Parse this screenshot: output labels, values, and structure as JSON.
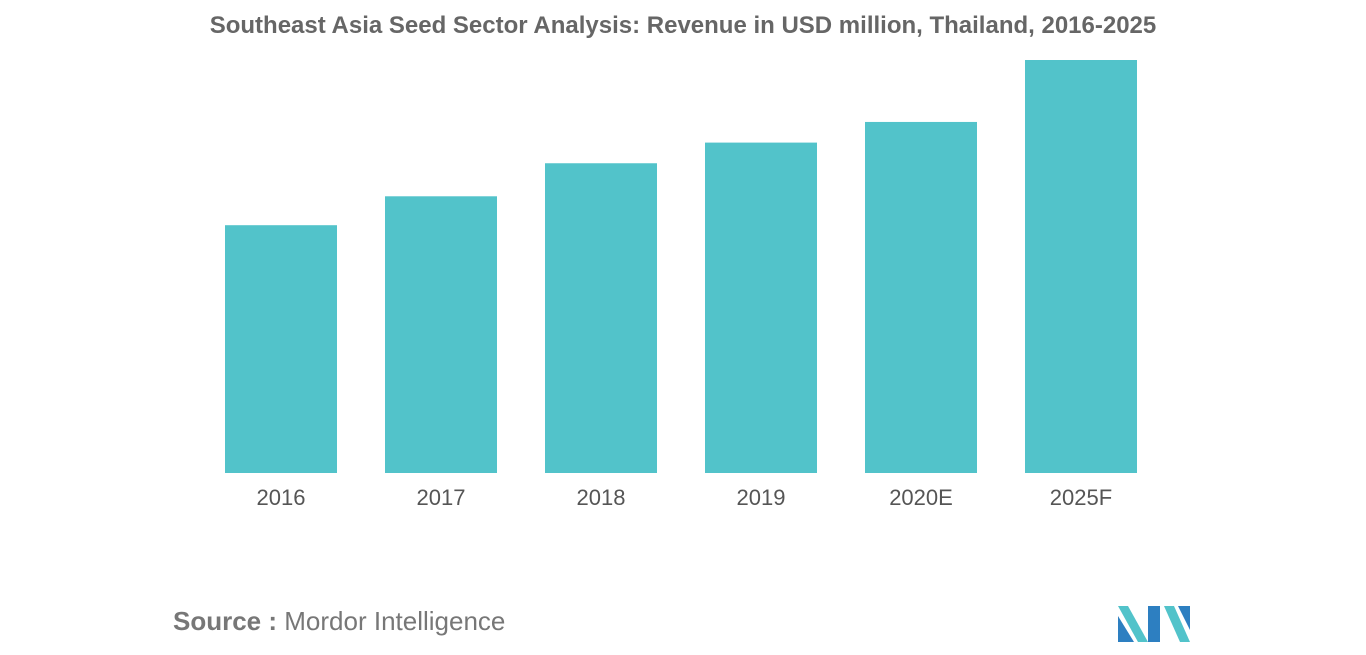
{
  "chart_data": {
    "type": "bar",
    "title": "Southeast Asia Seed Sector Analysis: Revenue in USD million, Thailand, 2016-2025",
    "categories": [
      "2016",
      "2017",
      "2018",
      "2019",
      "2020E",
      "2025F"
    ],
    "values": [
      60,
      67,
      75,
      80,
      85,
      100
    ],
    "xlabel": "",
    "ylabel": "",
    "ylim": [
      0,
      100
    ],
    "grid": false,
    "legend": "none",
    "bar_color": "#52C3CA"
  },
  "source": {
    "label": "Source :",
    "text": "Mordor Intelligence"
  },
  "logo": {
    "icon": "mordor-intelligence-logo",
    "colors": [
      "#2D7FC1",
      "#52C3CA"
    ]
  }
}
